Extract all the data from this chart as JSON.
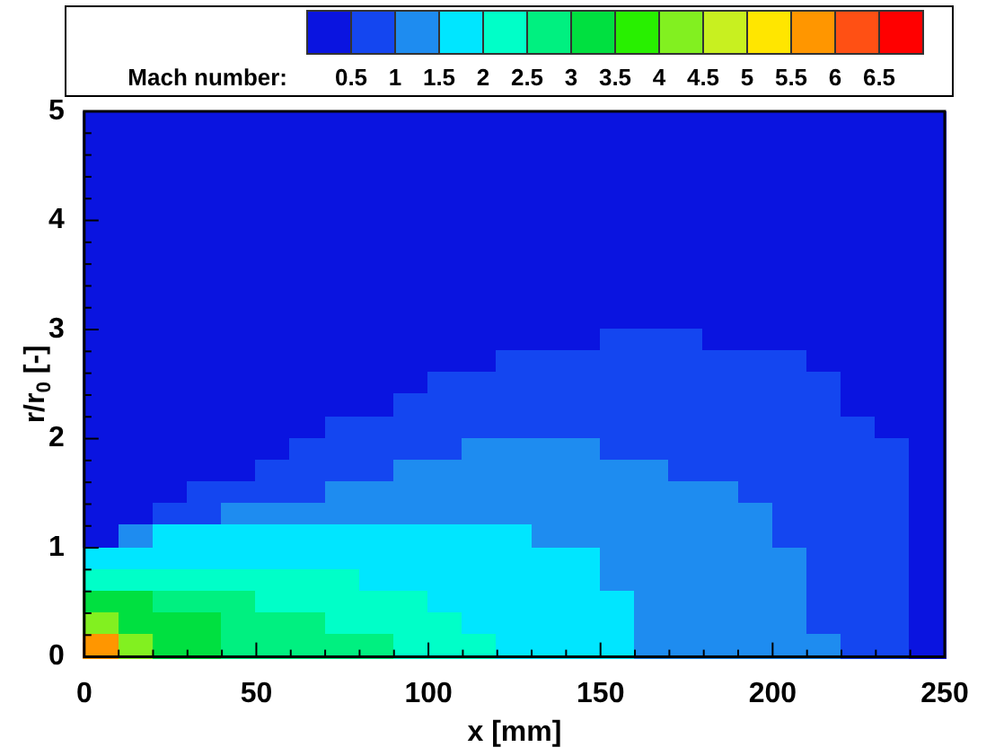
{
  "chart_data": {
    "type": "heatmap",
    "xlabel": "x [mm]",
    "ylabel": "r/r$_{0}$ [-]",
    "clabel": "Mach number:",
    "x": [
      5,
      15,
      25,
      35,
      45,
      55,
      65,
      75,
      85,
      95,
      105,
      115,
      125,
      135,
      145,
      155,
      165,
      175,
      185,
      195,
      205,
      215,
      225,
      235,
      245
    ],
    "y": [
      4.9,
      4.7,
      4.5,
      4.3,
      4.1,
      3.9,
      3.7,
      3.5,
      3.3,
      3.1,
      2.9,
      2.7,
      2.5,
      2.3,
      2.1,
      1.9,
      1.7,
      1.5,
      1.3,
      1.1,
      0.9,
      0.7,
      0.5,
      0.3,
      0.1
    ],
    "xlim": [
      0,
      250
    ],
    "xticks": [
      0,
      {
        "value": 10,
        "label": null
      },
      {
        "value": 20,
        "label": null
      },
      {
        "value": 30,
        "label": null
      },
      {
        "value": 40,
        "label": null
      },
      50,
      {
        "value": 60,
        "label": null
      },
      {
        "value": 70,
        "label": null
      },
      {
        "value": 80,
        "label": null
      },
      {
        "value": 90,
        "label": null
      },
      100,
      {
        "value": 110,
        "label": null
      },
      {
        "value": 120,
        "label": null
      },
      {
        "value": 130,
        "label": null
      },
      {
        "value": 140,
        "label": null
      },
      150,
      {
        "value": 160,
        "label": null
      },
      {
        "value": 170,
        "label": null
      },
      {
        "value": 180,
        "label": null
      },
      {
        "value": 190,
        "label": null
      },
      200,
      {
        "value": 210,
        "label": null
      },
      {
        "value": 220,
        "label": null
      },
      {
        "value": 230,
        "label": null
      },
      {
        "value": 240,
        "label": null
      },
      250
    ],
    "ylim": [
      0,
      5
    ],
    "yticks": [
      0,
      {
        "value": 0.2,
        "label": null
      },
      {
        "value": 0.4,
        "label": null
      },
      {
        "value": 0.6,
        "label": null
      },
      {
        "value": 0.8,
        "label": null
      },
      1,
      {
        "value": 1.2,
        "label": null
      },
      {
        "value": 1.4,
        "label": null
      },
      {
        "value": 1.6,
        "label": null
      },
      {
        "value": 1.8,
        "label": null
      },
      2,
      {
        "value": 2.2,
        "label": null
      },
      {
        "value": 2.4,
        "label": null
      },
      {
        "value": 2.6,
        "label": null
      },
      {
        "value": 2.8,
        "label": null
      },
      3,
      {
        "value": 3.2,
        "label": null
      },
      {
        "value": 3.4,
        "label": null
      },
      {
        "value": 3.6,
        "label": null
      },
      {
        "value": 3.8,
        "label": null
      },
      4,
      {
        "value": 4.2,
        "label": null
      },
      {
        "value": 4.4,
        "label": null
      },
      {
        "value": 4.6,
        "label": null
      },
      {
        "value": 4.8,
        "label": null
      },
      5
    ],
    "clim": [
      0,
      7
    ],
    "cticks": [
      0.5,
      1,
      1.5,
      2,
      2.5,
      3,
      3.5,
      4,
      4.5,
      5,
      5.5,
      6,
      6.5
    ],
    "colors": [
      "#0a14e0",
      "#1446f0",
      "#1e8cf0",
      "#00e6ff",
      "#00ffc8",
      "#00f080",
      "#00e040",
      "#28f000",
      "#82f020",
      "#c8f020",
      "#ffe600",
      "#ff9600",
      "#ff5014",
      "#ff0000"
    ],
    "cells": [
      [
        0.25,
        0.25,
        0.25,
        0.25,
        0.25,
        0.25,
        0.25,
        0.25,
        0.25,
        0.25,
        0.25,
        0.25,
        0.25,
        0.25,
        0.25,
        0.25,
        0.25,
        0.25,
        0.25,
        0.25,
        0.25,
        0.25,
        0.25,
        0.25,
        0.25
      ],
      [
        0.25,
        0.25,
        0.25,
        0.25,
        0.25,
        0.25,
        0.25,
        0.25,
        0.25,
        0.25,
        0.25,
        0.25,
        0.25,
        0.25,
        0.25,
        0.25,
        0.25,
        0.25,
        0.25,
        0.25,
        0.25,
        0.25,
        0.25,
        0.25,
        0.25
      ],
      [
        0.25,
        0.25,
        0.25,
        0.25,
        0.25,
        0.25,
        0.25,
        0.25,
        0.25,
        0.25,
        0.25,
        0.25,
        0.25,
        0.25,
        0.25,
        0.25,
        0.25,
        0.25,
        0.25,
        0.25,
        0.25,
        0.25,
        0.25,
        0.25,
        0.25
      ],
      [
        0.25,
        0.25,
        0.25,
        0.25,
        0.25,
        0.25,
        0.25,
        0.25,
        0.25,
        0.25,
        0.25,
        0.25,
        0.25,
        0.25,
        0.25,
        0.25,
        0.25,
        0.25,
        0.25,
        0.25,
        0.25,
        0.25,
        0.25,
        0.25,
        0.25
      ],
      [
        0.25,
        0.25,
        0.25,
        0.25,
        0.25,
        0.25,
        0.25,
        0.25,
        0.25,
        0.25,
        0.25,
        0.25,
        0.25,
        0.25,
        0.25,
        0.25,
        0.25,
        0.25,
        0.25,
        0.25,
        0.25,
        0.25,
        0.25,
        0.25,
        0.25
      ],
      [
        0.25,
        0.25,
        0.25,
        0.25,
        0.25,
        0.25,
        0.25,
        0.25,
        0.25,
        0.25,
        0.25,
        0.25,
        0.25,
        0.25,
        0.25,
        0.25,
        0.25,
        0.25,
        0.25,
        0.25,
        0.25,
        0.25,
        0.25,
        0.25,
        0.25
      ],
      [
        0.25,
        0.25,
        0.25,
        0.25,
        0.25,
        0.25,
        0.25,
        0.25,
        0.25,
        0.25,
        0.25,
        0.25,
        0.25,
        0.25,
        0.25,
        0.25,
        0.25,
        0.25,
        0.25,
        0.25,
        0.25,
        0.25,
        0.25,
        0.25,
        0.25
      ],
      [
        0.25,
        0.25,
        0.25,
        0.25,
        0.25,
        0.25,
        0.25,
        0.25,
        0.25,
        0.25,
        0.25,
        0.25,
        0.25,
        0.25,
        0.25,
        0.25,
        0.25,
        0.25,
        0.25,
        0.25,
        0.25,
        0.25,
        0.25,
        0.25,
        0.25
      ],
      [
        0.25,
        0.25,
        0.25,
        0.25,
        0.25,
        0.25,
        0.25,
        0.25,
        0.25,
        0.25,
        0.25,
        0.25,
        0.25,
        0.25,
        0.25,
        0.25,
        0.25,
        0.25,
        0.25,
        0.25,
        0.25,
        0.25,
        0.25,
        0.25,
        0.25
      ],
      [
        0.25,
        0.25,
        0.25,
        0.25,
        0.25,
        0.25,
        0.25,
        0.25,
        0.25,
        0.25,
        0.25,
        0.25,
        0.25,
        0.25,
        0.25,
        0.25,
        0.25,
        0.25,
        0.25,
        0.25,
        0.25,
        0.25,
        0.25,
        0.25,
        0.25
      ],
      [
        0.25,
        0.25,
        0.25,
        0.25,
        0.25,
        0.25,
        0.25,
        0.25,
        0.25,
        0.25,
        0.25,
        0.25,
        0.25,
        0.25,
        0.25,
        0.75,
        0.75,
        0.75,
        0.25,
        0.25,
        0.25,
        0.25,
        0.25,
        0.25,
        0.25
      ],
      [
        0.25,
        0.25,
        0.25,
        0.25,
        0.25,
        0.25,
        0.25,
        0.25,
        0.25,
        0.25,
        0.25,
        0.25,
        0.75,
        0.75,
        0.75,
        0.75,
        0.75,
        0.75,
        0.75,
        0.75,
        0.75,
        0.25,
        0.25,
        0.25,
        0.25
      ],
      [
        0.25,
        0.25,
        0.25,
        0.25,
        0.25,
        0.25,
        0.25,
        0.25,
        0.25,
        0.25,
        0.75,
        0.75,
        0.75,
        0.75,
        0.75,
        0.75,
        0.75,
        0.75,
        0.75,
        0.75,
        0.75,
        0.75,
        0.25,
        0.25,
        0.25
      ],
      [
        0.25,
        0.25,
        0.25,
        0.25,
        0.25,
        0.25,
        0.25,
        0.25,
        0.25,
        0.75,
        0.75,
        0.75,
        0.75,
        0.75,
        0.75,
        0.75,
        0.75,
        0.75,
        0.75,
        0.75,
        0.75,
        0.75,
        0.25,
        0.25,
        0.25
      ],
      [
        0.25,
        0.25,
        0.25,
        0.25,
        0.25,
        0.25,
        0.25,
        0.75,
        0.75,
        0.75,
        0.75,
        0.75,
        0.75,
        0.75,
        0.75,
        0.75,
        0.75,
        0.75,
        0.75,
        0.75,
        0.75,
        0.75,
        0.75,
        0.25,
        0.25
      ],
      [
        0.25,
        0.25,
        0.25,
        0.25,
        0.25,
        0.25,
        0.75,
        0.75,
        0.75,
        0.75,
        0.75,
        1.25,
        1.25,
        1.25,
        1.25,
        0.75,
        0.75,
        0.75,
        0.75,
        0.75,
        0.75,
        0.75,
        0.75,
        0.75,
        0.25
      ],
      [
        0.25,
        0.25,
        0.25,
        0.25,
        0.25,
        0.75,
        0.75,
        0.75,
        0.75,
        1.25,
        1.25,
        1.25,
        1.25,
        1.25,
        1.25,
        1.25,
        1.25,
        0.75,
        0.75,
        0.75,
        0.75,
        0.75,
        0.75,
        0.75,
        0.25
      ],
      [
        0.25,
        0.25,
        0.25,
        0.75,
        0.75,
        0.75,
        0.75,
        1.25,
        1.25,
        1.25,
        1.25,
        1.25,
        1.25,
        1.25,
        1.25,
        1.25,
        1.25,
        1.25,
        1.25,
        0.75,
        0.75,
        0.75,
        0.75,
        0.75,
        0.25
      ],
      [
        0.25,
        0.25,
        0.75,
        0.75,
        1.25,
        1.25,
        1.25,
        1.25,
        1.25,
        1.25,
        1.25,
        1.25,
        1.25,
        1.25,
        1.25,
        1.25,
        1.25,
        1.25,
        1.25,
        1.25,
        0.75,
        0.75,
        0.75,
        0.75,
        0.25
      ],
      [
        0.25,
        1.25,
        1.75,
        1.75,
        1.75,
        1.75,
        1.75,
        1.75,
        1.75,
        1.75,
        1.75,
        1.75,
        1.75,
        1.25,
        1.25,
        1.25,
        1.25,
        1.25,
        1.25,
        1.25,
        0.75,
        0.75,
        0.75,
        0.75,
        0.25
      ],
      [
        1.75,
        1.75,
        1.75,
        1.75,
        1.75,
        1.75,
        1.75,
        1.75,
        1.75,
        1.75,
        1.75,
        1.75,
        1.75,
        1.75,
        1.75,
        1.25,
        1.25,
        1.25,
        1.25,
        1.25,
        1.25,
        0.75,
        0.75,
        0.75,
        0.25
      ],
      [
        2.25,
        2.25,
        2.25,
        2.25,
        2.25,
        2.25,
        2.25,
        2.25,
        1.75,
        1.75,
        1.75,
        1.75,
        1.75,
        1.75,
        1.75,
        1.25,
        1.25,
        1.25,
        1.25,
        1.25,
        1.25,
        0.75,
        0.75,
        0.75,
        0.25
      ],
      [
        3.25,
        3.25,
        2.75,
        2.75,
        2.75,
        2.25,
        2.25,
        2.25,
        2.25,
        2.25,
        1.75,
        1.75,
        1.75,
        1.75,
        1.75,
        1.75,
        1.25,
        1.25,
        1.25,
        1.25,
        1.25,
        0.75,
        0.75,
        0.75,
        0.25
      ],
      [
        4.25,
        3.25,
        3.25,
        3.25,
        2.75,
        2.75,
        2.75,
        2.25,
        2.25,
        2.25,
        2.25,
        1.75,
        1.75,
        1.75,
        1.75,
        1.75,
        1.25,
        1.25,
        1.25,
        1.25,
        1.25,
        0.75,
        0.75,
        0.75,
        0.25
      ],
      [
        5.75,
        4.25,
        3.25,
        3.25,
        2.75,
        2.75,
        2.75,
        2.75,
        2.75,
        2.25,
        2.25,
        2.25,
        1.75,
        1.75,
        1.75,
        1.75,
        1.25,
        1.25,
        1.25,
        1.25,
        1.25,
        1.25,
        0.75,
        0.75,
        0.25
      ]
    ]
  }
}
